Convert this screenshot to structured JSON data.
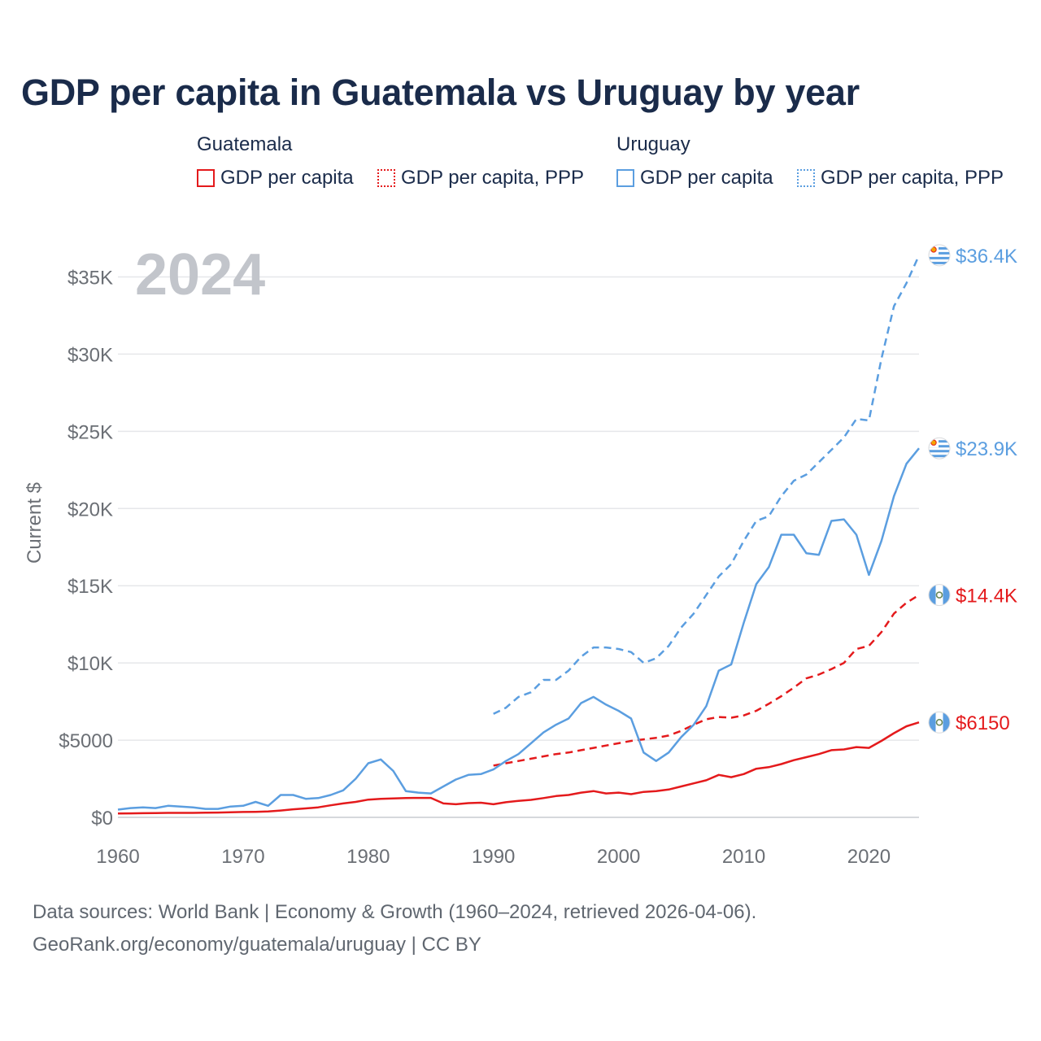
{
  "chart_data": {
    "type": "line",
    "title": "GDP per capita in Guatemala vs Uruguay by year",
    "year_label": "2024",
    "ylabel": "Current $",
    "xlim": [
      1960,
      2024
    ],
    "ylim": [
      0,
      37500
    ],
    "x_ticks": [
      1960,
      1970,
      1980,
      1990,
      2000,
      2010,
      2020
    ],
    "x_tick_labels": [
      "1960",
      "1970",
      "1980",
      "1990",
      "2000",
      "2010",
      "2020"
    ],
    "y_ticks": [
      0,
      5000,
      10000,
      15000,
      20000,
      25000,
      30000,
      35000
    ],
    "y_tick_labels": [
      "$0",
      "$5000",
      "$10K",
      "$15K",
      "$20K",
      "$25K",
      "$30K",
      "$35K"
    ],
    "legend": {
      "groups": [
        {
          "label": "Guatemala",
          "items": [
            "GDP per capita",
            "GDP per capita, PPP"
          ]
        },
        {
          "label": "Uruguay",
          "items": [
            "GDP per capita",
            "GDP per capita, PPP"
          ]
        }
      ]
    },
    "series": [
      {
        "name": "Guatemala GDP per capita",
        "country": "Guatemala",
        "color": "#e41a1c",
        "dash": "solid",
        "end_label": "$6150",
        "start_year": 1960,
        "values": [
          250,
          260,
          270,
          280,
          290,
          290,
          290,
          300,
          310,
          330,
          350,
          360,
          380,
          440,
          520,
          580,
          650,
          780,
          900,
          1000,
          1150,
          1200,
          1220,
          1250,
          1260,
          1260,
          900,
          850,
          920,
          950,
          850,
          980,
          1070,
          1130,
          1250,
          1380,
          1450,
          1600,
          1700,
          1550,
          1600,
          1500,
          1650,
          1700,
          1800,
          2000,
          2200,
          2400,
          2750,
          2600,
          2800,
          3150,
          3250,
          3450,
          3700,
          3900,
          4100,
          4350,
          4400,
          4550,
          4500,
          4950,
          5450,
          5900,
          6150
        ]
      },
      {
        "name": "Guatemala GDP per capita, PPP",
        "country": "Guatemala",
        "color": "#e41a1c",
        "dash": "dashed",
        "end_label": "$14.4K",
        "start_year": 1990,
        "values": [
          3350,
          3500,
          3650,
          3800,
          3950,
          4100,
          4200,
          4350,
          4500,
          4650,
          4800,
          4950,
          5050,
          5150,
          5300,
          5600,
          6000,
          6350,
          6500,
          6450,
          6600,
          6900,
          7350,
          7850,
          8400,
          9000,
          9250,
          9600,
          10000,
          10900,
          11100,
          12000,
          13200,
          13900,
          14400
        ]
      },
      {
        "name": "Uruguay GDP per capita",
        "country": "Uruguay",
        "color": "#5b9ee0",
        "dash": "solid",
        "end_label": "$23.9K",
        "start_year": 1960,
        "values": [
          500,
          600,
          650,
          600,
          750,
          700,
          650,
          550,
          550,
          700,
          750,
          1000,
          750,
          1450,
          1450,
          1200,
          1250,
          1450,
          1750,
          2500,
          3500,
          3750,
          3000,
          1700,
          1600,
          1550,
          2000,
          2450,
          2750,
          2800,
          3100,
          3650,
          4100,
          4800,
          5500,
          6000,
          6400,
          7400,
          7800,
          7300,
          6900,
          6400,
          4200,
          3650,
          4200,
          5200,
          6000,
          7200,
          9500,
          9900,
          12600,
          15100,
          16200,
          18300,
          18300,
          17100,
          17000,
          19200,
          19300,
          18300,
          15700,
          17900,
          20800,
          22900,
          23900
        ]
      },
      {
        "name": "Uruguay GDP per capita, PPP",
        "country": "Uruguay",
        "color": "#5b9ee0",
        "dash": "dashed",
        "end_label": "$36.4K",
        "start_year": 1990,
        "values": [
          6700,
          7100,
          7800,
          8100,
          8900,
          8900,
          9500,
          10400,
          11000,
          11000,
          10900,
          10700,
          10000,
          10300,
          11100,
          12300,
          13200,
          14400,
          15600,
          16400,
          17900,
          19200,
          19500,
          20800,
          21800,
          22200,
          23000,
          23800,
          24600,
          25800,
          25700,
          29700,
          33100,
          34600,
          36400
        ]
      }
    ]
  },
  "footer": {
    "line1": "Data sources: World Bank | Economy & Growth (1960–2024, retrieved 2026-04-06).",
    "line2": "GeoRank.org/economy/guatemala/uruguay | CC BY"
  }
}
